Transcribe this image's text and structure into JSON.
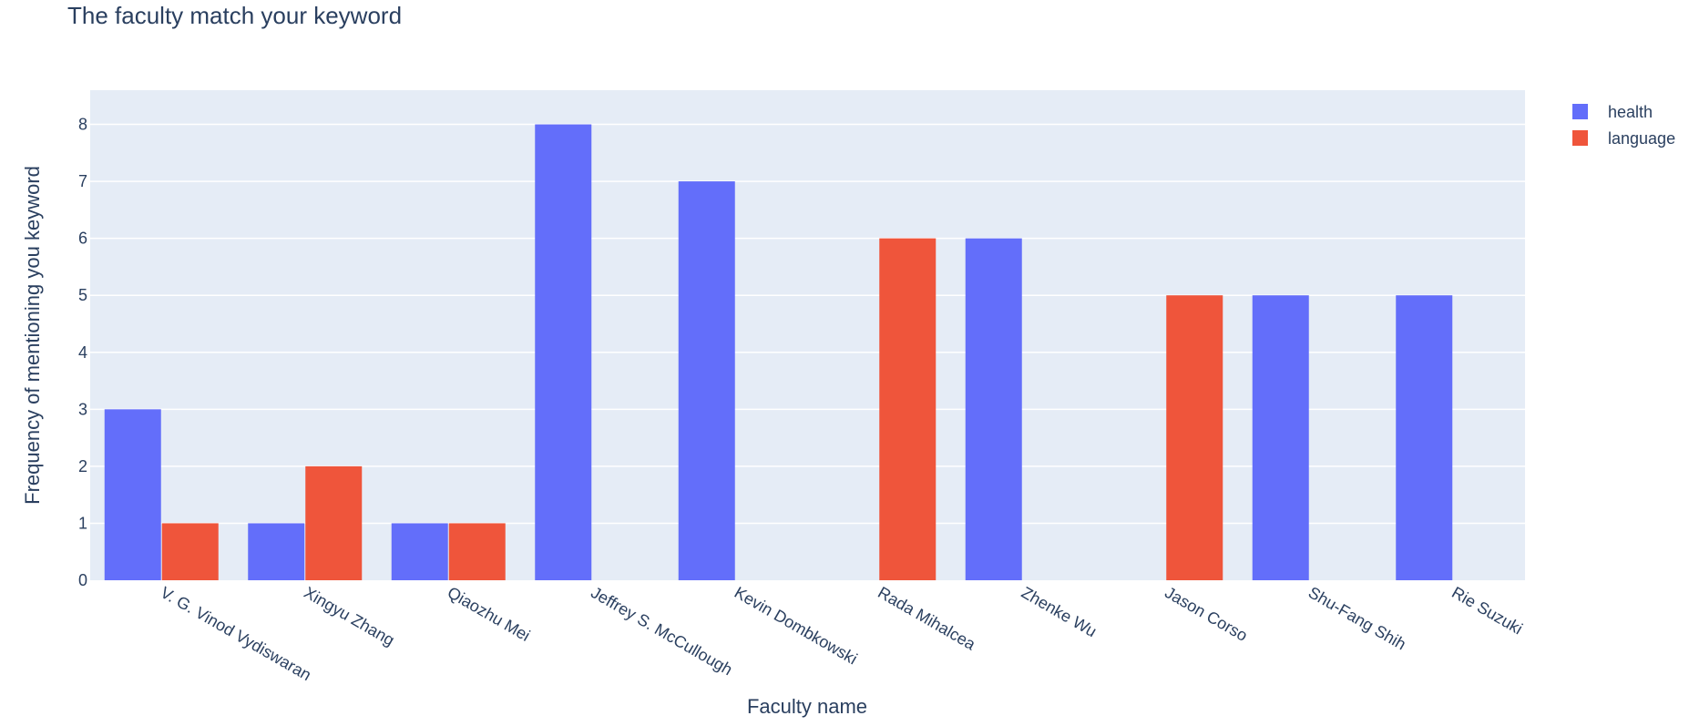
{
  "chart_data": {
    "type": "bar",
    "title": "The faculty match your keyword",
    "xlabel": "Faculty name",
    "ylabel": "Frequency of mentioning you keyword",
    "categories": [
      "V. G. Vinod Vydiswaran",
      "Xingyu Zhang",
      "Qiaozhu Mei",
      "Jeffrey S. McCullough",
      "Kevin Dombkowski",
      "Rada Mihalcea",
      "Zhenke Wu",
      "Jason Corso",
      "Shu-Fang Shih",
      "Rie Suzuki"
    ],
    "series": [
      {
        "name": "health",
        "color": "#636efa",
        "values": [
          3,
          1,
          1,
          8,
          7,
          0,
          6,
          0,
          5,
          5
        ]
      },
      {
        "name": "language",
        "color": "#ef553b",
        "values": [
          1,
          2,
          1,
          0,
          0,
          6,
          0,
          5,
          0,
          0
        ]
      }
    ],
    "ylim": [
      0,
      8.6
    ],
    "yticks": [
      0,
      1,
      2,
      3,
      4,
      5,
      6,
      7,
      8
    ],
    "grid": true,
    "legend": "top-right",
    "plot_bg": "#e5ecf6"
  }
}
